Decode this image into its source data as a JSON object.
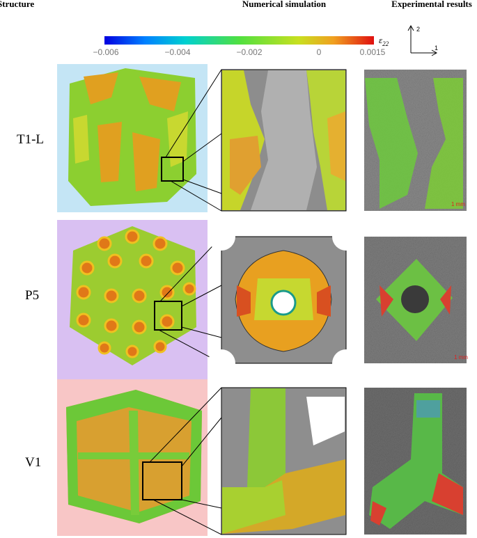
{
  "header": {
    "structure": "Structure",
    "simulation": "Numerical simulation",
    "experiment": "Experimental results"
  },
  "colorbar": {
    "label": "ε",
    "label_sub": "22",
    "ticks": [
      "−0.006",
      "−0.004",
      "−0.002",
      "0",
      "0.0015"
    ]
  },
  "axes": {
    "y": "2",
    "x": "1"
  },
  "rows": [
    {
      "label": "T1-L",
      "scale_bar": "1 mm"
    },
    {
      "label": "P5",
      "scale_bar": "1 mm"
    },
    {
      "label": "V1"
    }
  ]
}
